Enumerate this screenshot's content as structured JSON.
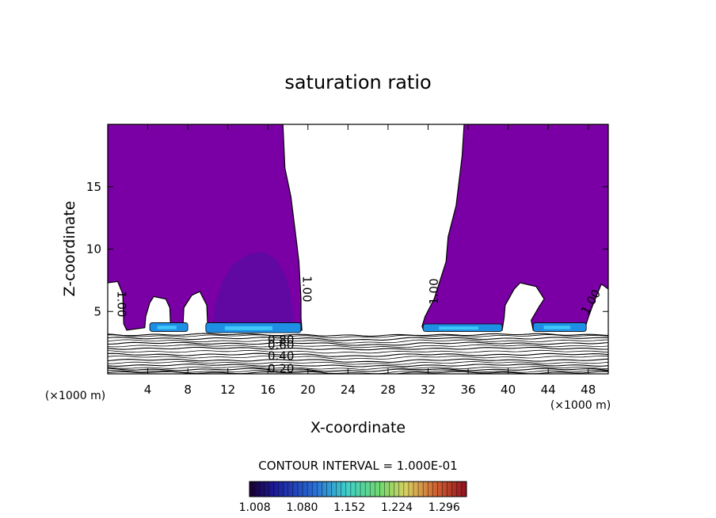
{
  "chart_data": {
    "type": "heatmap",
    "title": "saturation ratio",
    "xlabel": "X-coordinate",
    "ylabel": "Z-coordinate",
    "x_unit": "(×1000 m)",
    "x_unit_right": "(×1000 m)",
    "xlim": [
      0,
      50
    ],
    "ylim": [
      0,
      20
    ],
    "x_ticks": [
      4,
      8,
      12,
      16,
      20,
      24,
      28,
      32,
      36,
      40,
      44,
      48
    ],
    "y_ticks": [
      5,
      10,
      15
    ],
    "contour_interval_text": "CONTOUR INTERVAL = 1.000E-01",
    "colorbar_ticks": [
      "1.008",
      "1.080",
      "1.152",
      "1.224",
      "1.296"
    ],
    "colorbar_range": [
      1.0,
      1.33
    ],
    "colors": {
      "supersaturated_fill": "#7a00a6",
      "enhanced_fill": "#5a0aa0",
      "base_band_fill": "#1f8fe6",
      "base_band_core": "#4fe0ff"
    },
    "contour_labels": [
      {
        "text": "1.00",
        "x": 1.0,
        "y": 5.6,
        "angle": 90
      },
      {
        "text": "1.00",
        "x": 19.5,
        "y": 6.8,
        "angle": 90
      },
      {
        "text": "1.00",
        "x": 33.0,
        "y": 6.6,
        "angle": -90
      },
      {
        "text": "1.00",
        "x": 48.6,
        "y": 5.6,
        "angle": -60
      },
      {
        "text": "0.80",
        "x": 17.3,
        "y": 2.4,
        "angle": 0
      },
      {
        "text": "0.60",
        "x": 17.3,
        "y": 2.0,
        "angle": 0
      },
      {
        "text": "0.40",
        "x": 17.3,
        "y": 1.1,
        "angle": 0
      },
      {
        "text": "0.20",
        "x": 17.3,
        "y": 0.1,
        "angle": 0
      }
    ],
    "regions": {
      "cloud_left": [
        [
          0,
          20
        ],
        [
          17.5,
          20
        ],
        [
          17.7,
          16.5
        ],
        [
          18.3,
          14.2
        ],
        [
          18.8,
          11.0
        ],
        [
          19.1,
          9.0
        ],
        [
          19.2,
          7.5
        ],
        [
          19.3,
          6.0
        ],
        [
          19.3,
          4.5
        ],
        [
          19.4,
          3.5
        ],
        [
          10.0,
          3.5
        ],
        [
          9.9,
          5.5
        ],
        [
          9.2,
          6.6
        ],
        [
          8.4,
          6.3
        ],
        [
          7.6,
          5.3
        ],
        [
          7.5,
          3.5
        ],
        [
          6.3,
          3.5
        ],
        [
          6.2,
          5.3
        ],
        [
          5.8,
          6.0
        ],
        [
          4.6,
          6.2
        ],
        [
          4.2,
          5.7
        ],
        [
          3.8,
          4.6
        ],
        [
          3.7,
          3.7
        ],
        [
          1.9,
          3.5
        ],
        [
          1.6,
          4.0
        ],
        [
          1.5,
          6.4
        ],
        [
          1.0,
          7.4
        ],
        [
          0,
          7.3
        ]
      ],
      "cloud_right": [
        [
          35.6,
          20
        ],
        [
          50,
          20
        ],
        [
          50,
          6.8
        ],
        [
          49.3,
          7.2
        ],
        [
          48.4,
          5.4
        ],
        [
          48.0,
          4.5
        ],
        [
          47.6,
          3.5
        ],
        [
          42.5,
          3.5
        ],
        [
          42.3,
          4.3
        ],
        [
          43.1,
          5.4
        ],
        [
          43.6,
          6.0
        ],
        [
          42.8,
          7.0
        ],
        [
          41.2,
          7.3
        ],
        [
          40.6,
          6.8
        ],
        [
          39.7,
          5.5
        ],
        [
          39.6,
          4.5
        ],
        [
          39.4,
          3.5
        ],
        [
          31.5,
          3.6
        ],
        [
          31.4,
          3.8
        ],
        [
          31.7,
          4.6
        ],
        [
          32.6,
          6.0
        ],
        [
          33.8,
          9.0
        ],
        [
          34.0,
          11.0
        ],
        [
          34.8,
          13.5
        ],
        [
          35.4,
          17.5
        ]
      ],
      "enhanced_blob": [
        [
          10.5,
          3.6
        ],
        [
          10.7,
          5.5
        ],
        [
          11.5,
          7.5
        ],
        [
          12.5,
          8.8
        ],
        [
          14.0,
          9.6
        ],
        [
          15.5,
          9.8
        ],
        [
          16.8,
          9.2
        ],
        [
          17.8,
          7.8
        ],
        [
          18.3,
          6.3
        ],
        [
          18.5,
          4.6
        ],
        [
          18.4,
          3.6
        ]
      ],
      "base_bands": [
        {
          "x0": 4.2,
          "x1": 8.0,
          "y0": 3.4,
          "y1": 4.1
        },
        {
          "x0": 9.8,
          "x1": 19.3,
          "y0": 3.3,
          "y1": 4.1
        },
        {
          "x0": 31.5,
          "x1": 39.4,
          "y0": 3.4,
          "y1": 4.0
        },
        {
          "x0": 42.5,
          "x1": 47.8,
          "y0": 3.4,
          "y1": 4.1
        }
      ]
    },
    "contour_levels_z": [
      0.1,
      0.2,
      0.35,
      0.5,
      0.7,
      0.9,
      1.1,
      1.35,
      1.55,
      1.8,
      2.05,
      2.25,
      2.45,
      2.65,
      2.85,
      3.05,
      3.15
    ]
  }
}
